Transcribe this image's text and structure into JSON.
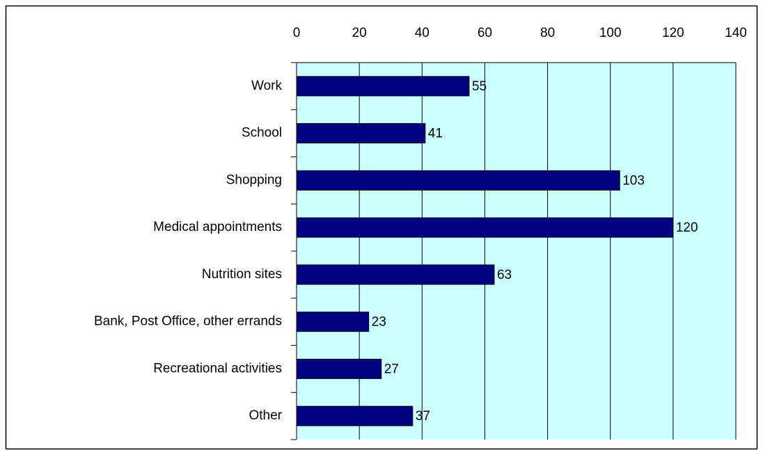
{
  "chart_data": {
    "type": "bar",
    "orientation": "horizontal",
    "categories": [
      "Work",
      "School",
      "Shopping",
      "Medical appointments",
      "Nutrition sites",
      "Bank, Post Office, other errands",
      "Recreational activities",
      "Other"
    ],
    "values": [
      55,
      41,
      103,
      120,
      63,
      23,
      27,
      37
    ],
    "color": "#000080",
    "background": "#ccffff",
    "xlim": [
      0,
      140
    ],
    "xticks": [
      0,
      20,
      40,
      60,
      80,
      100,
      120,
      140
    ],
    "grid": true
  }
}
